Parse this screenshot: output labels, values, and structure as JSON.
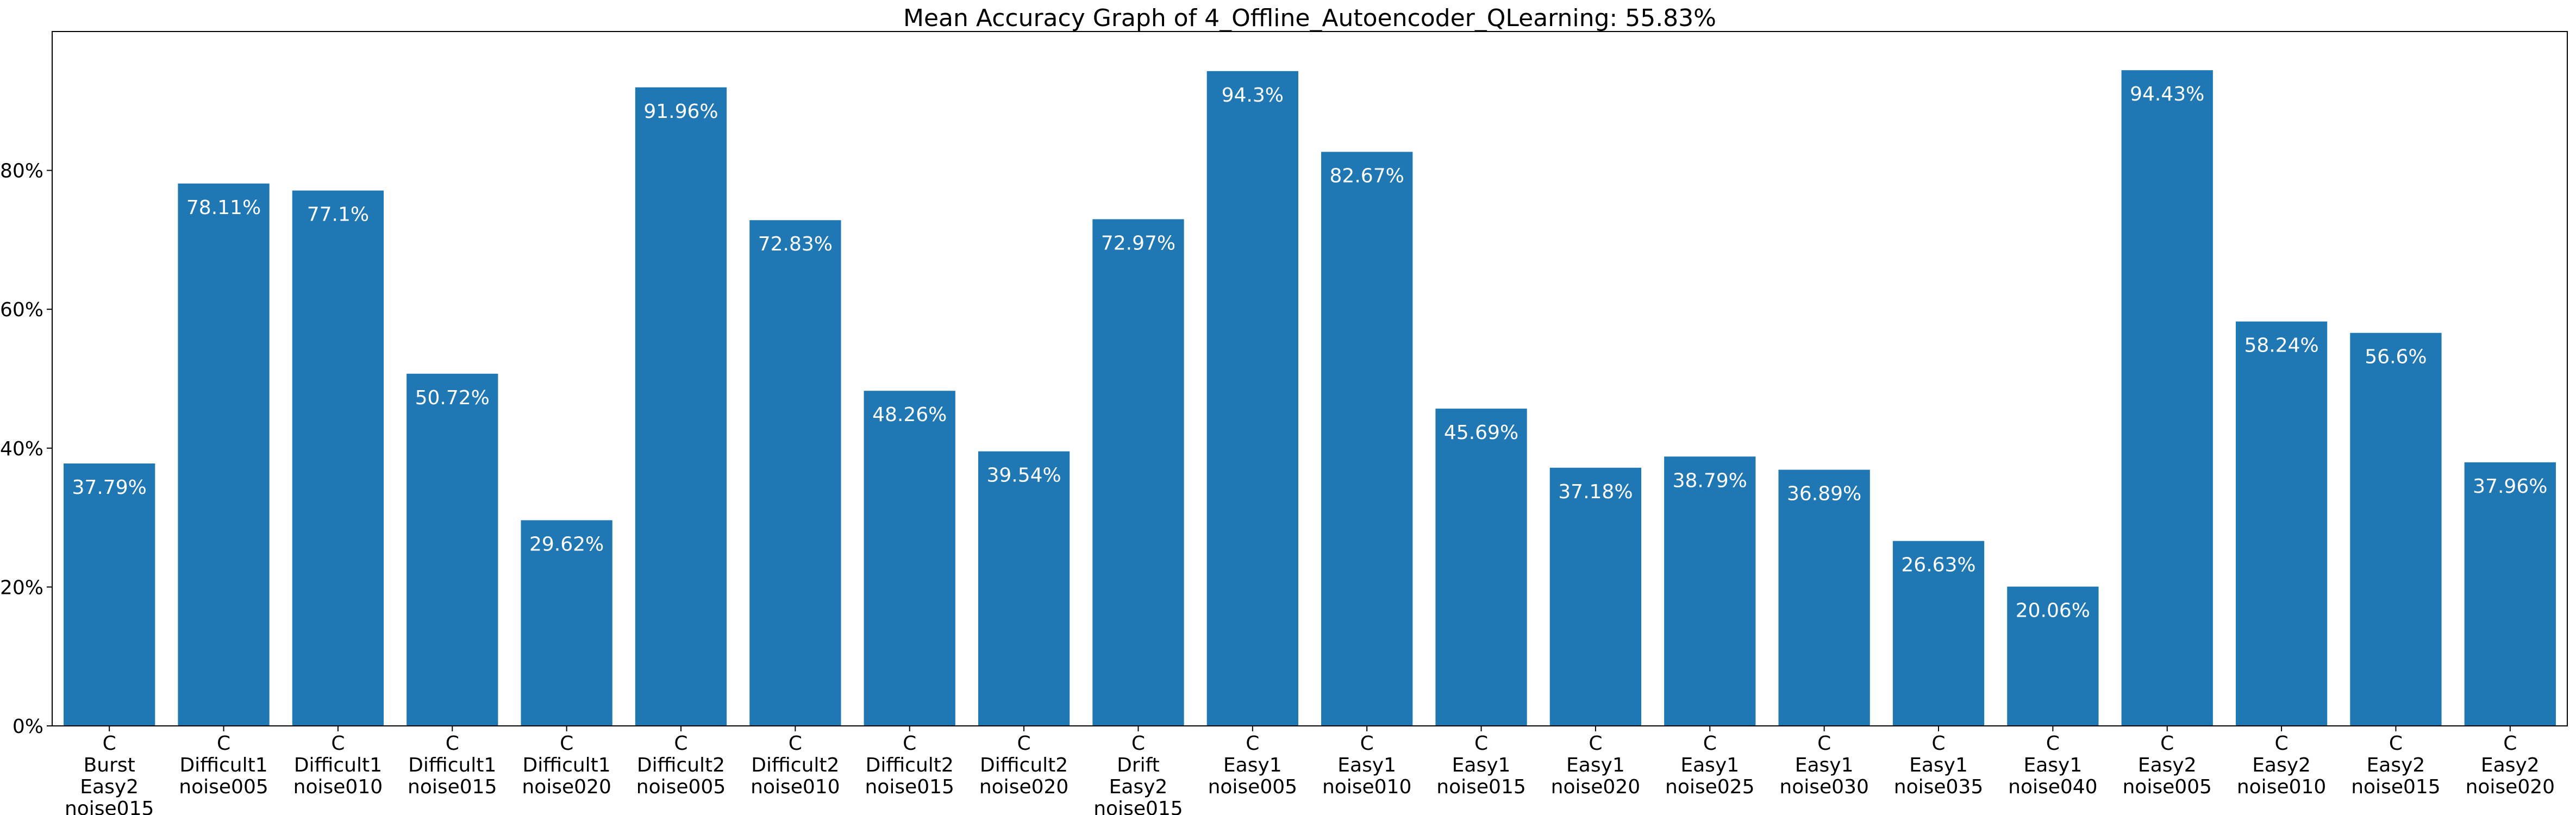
{
  "chart_data": {
    "type": "bar",
    "title": "Mean Accuracy Graph of 4_Offline_Autoencoder_QLearning: 55.83%",
    "xlabel": "",
    "ylabel": "",
    "ylim": [
      0,
      100
    ],
    "y_ticks": [
      0,
      20,
      40,
      60,
      80
    ],
    "y_tick_labels": [
      "0%",
      "20%",
      "40%",
      "60%",
      "80%"
    ],
    "grid": false,
    "bar_color": "#1f77b4",
    "categories": [
      [
        "C",
        "Burst",
        "Easy2",
        "noise015"
      ],
      [
        "C",
        "Difficult1",
        "noise005"
      ],
      [
        "C",
        "Difficult1",
        "noise010"
      ],
      [
        "C",
        "Difficult1",
        "noise015"
      ],
      [
        "C",
        "Difficult1",
        "noise020"
      ],
      [
        "C",
        "Difficult2",
        "noise005"
      ],
      [
        "C",
        "Difficult2",
        "noise010"
      ],
      [
        "C",
        "Difficult2",
        "noise015"
      ],
      [
        "C",
        "Difficult2",
        "noise020"
      ],
      [
        "C",
        "Drift",
        "Easy2",
        "noise015"
      ],
      [
        "C",
        "Easy1",
        "noise005"
      ],
      [
        "C",
        "Easy1",
        "noise010"
      ],
      [
        "C",
        "Easy1",
        "noise015"
      ],
      [
        "C",
        "Easy1",
        "noise020"
      ],
      [
        "C",
        "Easy1",
        "noise025"
      ],
      [
        "C",
        "Easy1",
        "noise030"
      ],
      [
        "C",
        "Easy1",
        "noise035"
      ],
      [
        "C",
        "Easy1",
        "noise040"
      ],
      [
        "C",
        "Easy2",
        "noise005"
      ],
      [
        "C",
        "Easy2",
        "noise010"
      ],
      [
        "C",
        "Easy2",
        "noise015"
      ],
      [
        "C",
        "Easy2",
        "noise020"
      ]
    ],
    "values": [
      37.79,
      78.11,
      77.1,
      50.72,
      29.62,
      91.96,
      72.83,
      48.26,
      39.54,
      72.97,
      94.3,
      82.67,
      45.69,
      37.18,
      38.79,
      36.89,
      26.63,
      20.06,
      94.43,
      58.24,
      56.6,
      37.96
    ],
    "data_labels": [
      "37.79%",
      "78.11%",
      "77.1%",
      "50.72%",
      "29.62%",
      "91.96%",
      "72.83%",
      "48.26%",
      "39.54%",
      "72.97%",
      "94.3%",
      "82.67%",
      "45.69%",
      "37.18%",
      "38.79%",
      "36.89%",
      "26.63%",
      "20.06%",
      "94.43%",
      "58.24%",
      "56.6%",
      "37.96%"
    ]
  }
}
